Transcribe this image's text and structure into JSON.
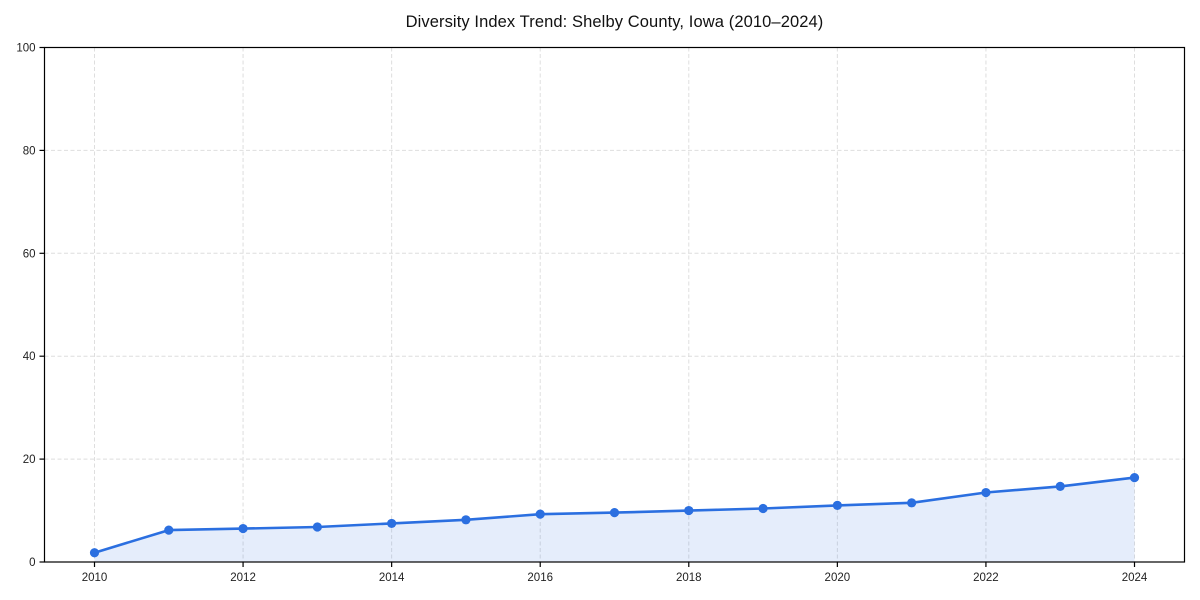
{
  "chart_data": {
    "type": "line",
    "title": "Diversity Index Trend: Shelby County, Iowa (2010–2024)",
    "xlabel": "",
    "ylabel": "",
    "x": [
      2010,
      2011,
      2012,
      2013,
      2014,
      2015,
      2016,
      2017,
      2018,
      2019,
      2020,
      2021,
      2022,
      2023,
      2024
    ],
    "series": [
      {
        "name": "Diversity Index",
        "values": [
          1.8,
          6.2,
          6.5,
          6.8,
          7.5,
          8.2,
          9.3,
          9.6,
          10.0,
          10.4,
          11.0,
          11.5,
          13.5,
          14.7,
          16.4
        ]
      }
    ],
    "xticks": [
      "2010",
      "2012",
      "2014",
      "2016",
      "2018",
      "2020",
      "2022",
      "2024"
    ],
    "xtick_years": [
      2010,
      2012,
      2014,
      2016,
      2018,
      2020,
      2022,
      2024
    ],
    "yticks": [
      0,
      20,
      40,
      60,
      80,
      100
    ],
    "ylim": [
      0,
      100
    ],
    "grid": true,
    "grid_style": "dashed",
    "legend": false,
    "colors": {
      "line": "#2b6fe0",
      "marker": "#2b6fe0",
      "fill": "rgba(43,111,224,0.12)",
      "grid": "#dedede",
      "axis": "#000000",
      "text": "#222222",
      "background": "#ffffff"
    }
  }
}
